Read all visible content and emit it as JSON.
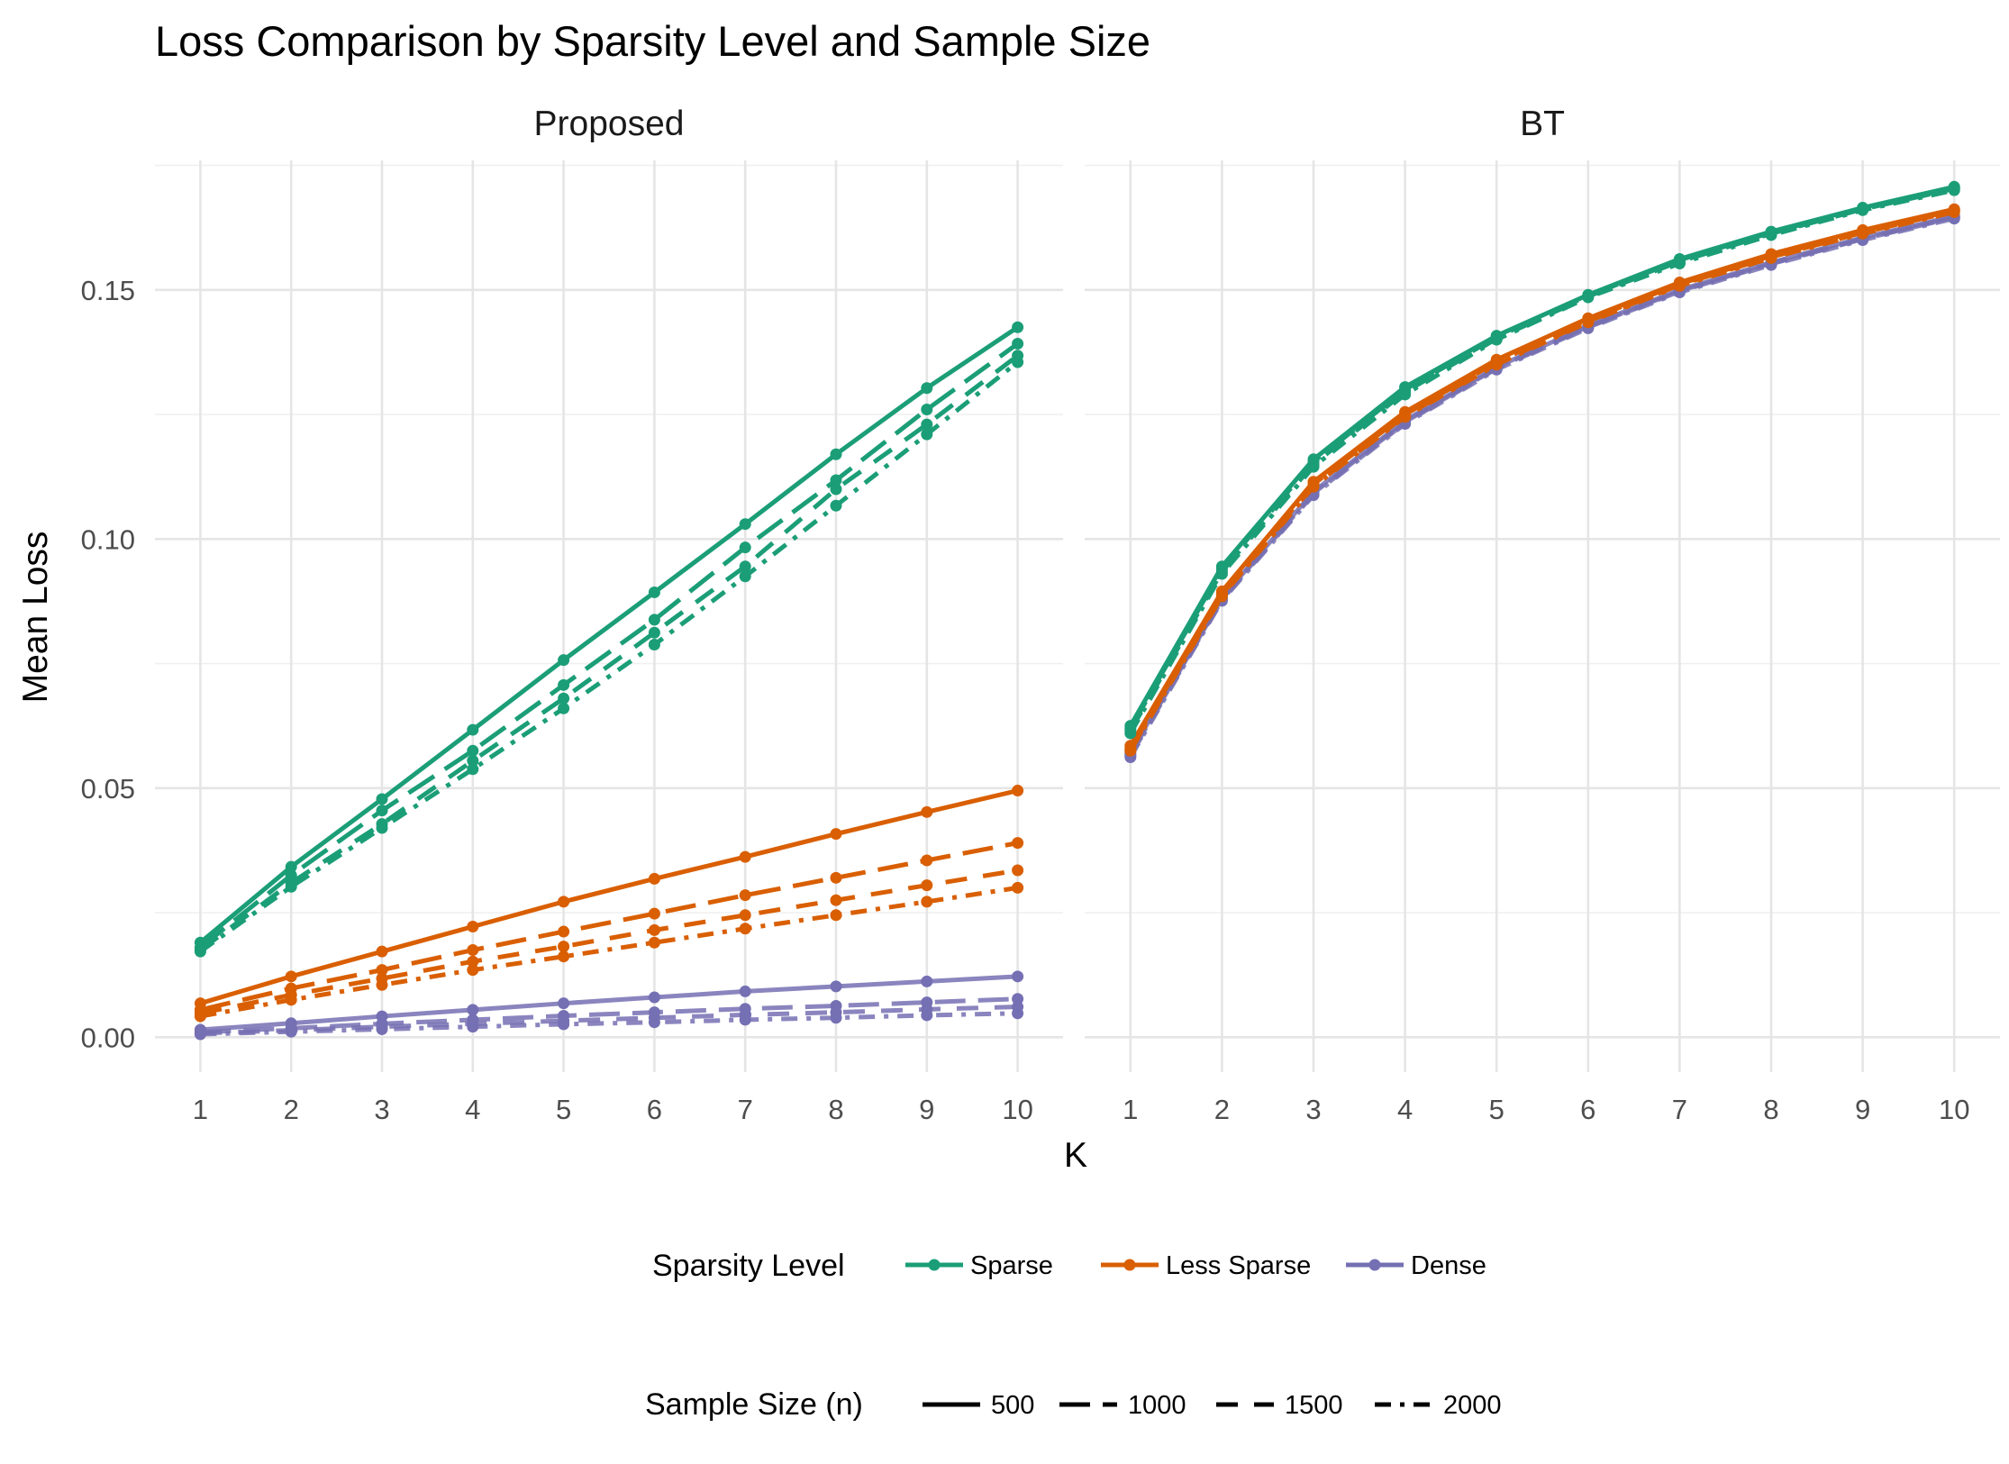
{
  "chart_data": {
    "type": "line",
    "title": "Loss Comparison by Sparsity Level and Sample Size",
    "xlabel": "K",
    "ylabel": "Mean Loss",
    "x": [
      1,
      2,
      3,
      4,
      5,
      6,
      7,
      8,
      9,
      10
    ],
    "xlim": [
      1,
      10
    ],
    "ylim": [
      -0.007,
      0.176
    ],
    "yticks": [
      0,
      0.05,
      0.1,
      0.15
    ],
    "ytick_labels": [
      "0.00",
      "0.05",
      "0.10",
      "0.15"
    ],
    "xtick_labels": [
      "1",
      "2",
      "3",
      "4",
      "5",
      "6",
      "7",
      "8",
      "9",
      "10"
    ],
    "facets": [
      {
        "name": "Proposed",
        "series": [
          {
            "sparsity": "Sparse",
            "n": "500",
            "values": [
              0.019,
              0.0342,
              0.0478,
              0.0617,
              0.0757,
              0.0893,
              0.103,
              0.117,
              0.1303,
              0.1425
            ]
          },
          {
            "sparsity": "Sparse",
            "n": "1000",
            "values": [
              0.018,
              0.0325,
              0.0455,
              0.0575,
              0.0707,
              0.0838,
              0.0983,
              0.1118,
              0.126,
              0.1392
            ]
          },
          {
            "sparsity": "Sparse",
            "n": "1500",
            "values": [
              0.0175,
              0.031,
              0.0428,
              0.0555,
              0.068,
              0.0812,
              0.0945,
              0.11,
              0.123,
              0.1368
            ]
          },
          {
            "sparsity": "Sparse",
            "n": "2000",
            "values": [
              0.0172,
              0.0302,
              0.042,
              0.0538,
              0.066,
              0.0788,
              0.0925,
              0.1067,
              0.121,
              0.1355
            ]
          },
          {
            "sparsity": "Less Sparse",
            "n": "500",
            "values": [
              0.0068,
              0.0122,
              0.0172,
              0.0222,
              0.0272,
              0.0318,
              0.0362,
              0.0408,
              0.0452,
              0.0495
            ]
          },
          {
            "sparsity": "Less Sparse",
            "n": "1000",
            "values": [
              0.0055,
              0.0098,
              0.0135,
              0.0175,
              0.0212,
              0.0248,
              0.0285,
              0.032,
              0.0355,
              0.039
            ]
          },
          {
            "sparsity": "Less Sparse",
            "n": "1500",
            "values": [
              0.0048,
              0.0085,
              0.0118,
              0.0152,
              0.0182,
              0.0215,
              0.0245,
              0.0275,
              0.0305,
              0.0335
            ]
          },
          {
            "sparsity": "Less Sparse",
            "n": "2000",
            "values": [
              0.0042,
              0.0075,
              0.0105,
              0.0135,
              0.0162,
              0.019,
              0.0218,
              0.0245,
              0.0272,
              0.03
            ]
          },
          {
            "sparsity": "Dense",
            "n": "500",
            "values": [
              0.0015,
              0.0028,
              0.0042,
              0.0055,
              0.0068,
              0.008,
              0.0092,
              0.0102,
              0.0112,
              0.0122
            ]
          },
          {
            "sparsity": "Dense",
            "n": "1000",
            "values": [
              0.001,
              0.0018,
              0.0027,
              0.0035,
              0.0043,
              0.005,
              0.0057,
              0.0063,
              0.007,
              0.0077
            ]
          },
          {
            "sparsity": "Dense",
            "n": "1500",
            "values": [
              0.0008,
              0.0014,
              0.0021,
              0.0027,
              0.0033,
              0.0039,
              0.0045,
              0.005,
              0.0056,
              0.0061
            ]
          },
          {
            "sparsity": "Dense",
            "n": "2000",
            "values": [
              0.0006,
              0.0011,
              0.0016,
              0.0021,
              0.0026,
              0.003,
              0.0035,
              0.0039,
              0.0044,
              0.0048
            ]
          }
        ]
      },
      {
        "name": "BT",
        "series": [
          {
            "sparsity": "Sparse",
            "n": "500",
            "values": [
              0.0625,
              0.0945,
              0.116,
              0.1305,
              0.1408,
              0.149,
              0.1562,
              0.1617,
              0.1665,
              0.1707
            ]
          },
          {
            "sparsity": "Sparse",
            "n": "1000",
            "values": [
              0.062,
              0.094,
              0.1155,
              0.13,
              0.1405,
              0.1488,
              0.156,
              0.1615,
              0.1663,
              0.1705
            ]
          },
          {
            "sparsity": "Sparse",
            "n": "1500",
            "values": [
              0.0615,
              0.0935,
              0.115,
              0.1295,
              0.1402,
              0.1487,
              0.1557,
              0.1613,
              0.1662,
              0.1703
            ]
          },
          {
            "sparsity": "Sparse",
            "n": "2000",
            "values": [
              0.061,
              0.093,
              0.1145,
              0.129,
              0.14,
              0.1485,
              0.1553,
              0.161,
              0.166,
              0.17
            ]
          },
          {
            "sparsity": "Less Sparse",
            "n": "500",
            "values": [
              0.0585,
              0.0895,
              0.1115,
              0.1255,
              0.136,
              0.1443,
              0.1515,
              0.1572,
              0.162,
              0.1662
            ]
          },
          {
            "sparsity": "Less Sparse",
            "n": "1000",
            "values": [
              0.058,
              0.089,
              0.111,
              0.125,
              0.1355,
              0.144,
              0.1512,
              0.1568,
              0.1617,
              0.166
            ]
          },
          {
            "sparsity": "Less Sparse",
            "n": "1500",
            "values": [
              0.0577,
              0.0887,
              0.1107,
              0.1247,
              0.1352,
              0.1437,
              0.151,
              0.1566,
              0.1615,
              0.1658
            ]
          },
          {
            "sparsity": "Less Sparse",
            "n": "2000",
            "values": [
              0.0575,
              0.0885,
              0.1105,
              0.1245,
              0.135,
              0.1435,
              0.1508,
              0.1564,
              0.1613,
              0.1656
            ]
          },
          {
            "sparsity": "Dense",
            "n": "500",
            "values": [
              0.0572,
              0.0882,
              0.1095,
              0.1238,
              0.1345,
              0.1428,
              0.15,
              0.1555,
              0.1605,
              0.1648
            ]
          },
          {
            "sparsity": "Dense",
            "n": "1000",
            "values": [
              0.0568,
              0.088,
              0.1092,
              0.1235,
              0.1343,
              0.1426,
              0.1498,
              0.1553,
              0.1603,
              0.1646
            ]
          },
          {
            "sparsity": "Dense",
            "n": "1500",
            "values": [
              0.0565,
              0.0878,
              0.109,
              0.1233,
              0.1342,
              0.1425,
              0.1497,
              0.1552,
              0.1602,
              0.1645
            ]
          },
          {
            "sparsity": "Dense",
            "n": "2000",
            "values": [
              0.0562,
              0.0876,
              0.1088,
              0.1231,
              0.134,
              0.1423,
              0.1495,
              0.155,
              0.16,
              0.1643
            ]
          }
        ]
      }
    ],
    "colors": {
      "Sparse": "#1b9e77",
      "Less Sparse": "#d95f02",
      "Dense": "#7570b3"
    },
    "legend": {
      "sparsity_title": "Sparsity Level",
      "sparsity_labels": [
        "Sparse",
        "Less Sparse",
        "Dense"
      ],
      "size_title": "Sample Size (n)",
      "size_labels": [
        "500",
        "1000",
        "1500",
        "2000"
      ],
      "position": "bottom"
    }
  }
}
